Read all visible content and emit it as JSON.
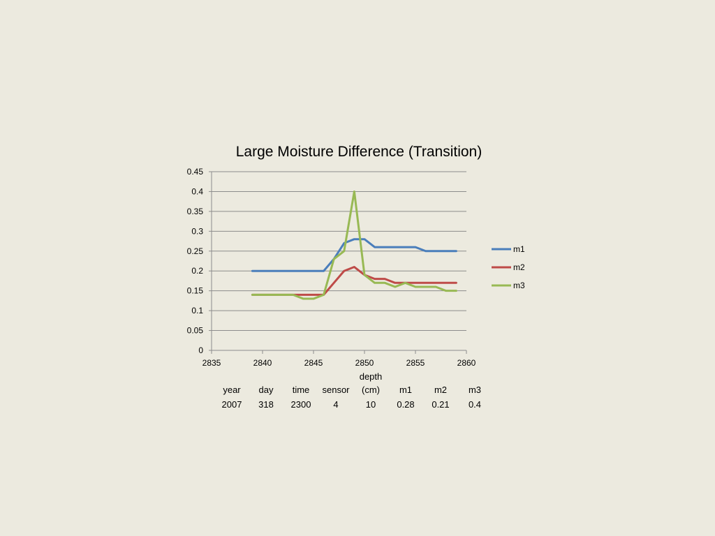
{
  "chart_data": {
    "type": "line",
    "title": "Large Moisture Difference (Transition)",
    "xlim": [
      2835,
      2860
    ],
    "ylim": [
      0,
      0.45
    ],
    "xticks": [
      2835,
      2840,
      2845,
      2850,
      2855,
      2860
    ],
    "yticks": [
      0,
      0.05,
      0.1,
      0.15,
      0.2,
      0.25,
      0.3,
      0.35,
      0.4,
      0.45
    ],
    "xtick_labels": [
      "2835",
      "2840",
      "2845",
      "2850",
      "2855",
      "2860"
    ],
    "ytick_labels": [
      "0",
      "0.05",
      "0.1",
      "0.15",
      "0.2",
      "0.25",
      "0.3",
      "0.35",
      "0.4",
      "0.45"
    ],
    "grid": true,
    "legend_position": "right",
    "x": [
      2839,
      2840,
      2841,
      2842,
      2843,
      2844,
      2845,
      2846,
      2847,
      2848,
      2849,
      2850,
      2851,
      2852,
      2853,
      2854,
      2855,
      2856,
      2857,
      2858,
      2859
    ],
    "series": [
      {
        "name": "m1",
        "color": "#4A7EBB",
        "values": [
          0.2,
          0.2,
          0.2,
          0.2,
          0.2,
          0.2,
          0.2,
          0.2,
          0.23,
          0.27,
          0.28,
          0.28,
          0.26,
          0.26,
          0.26,
          0.26,
          0.26,
          0.25,
          0.25,
          0.25,
          0.25
        ]
      },
      {
        "name": "m2",
        "color": "#BE4B48",
        "values": [
          0.14,
          0.14,
          0.14,
          0.14,
          0.14,
          0.14,
          0.14,
          0.14,
          0.17,
          0.2,
          0.21,
          0.19,
          0.18,
          0.18,
          0.17,
          0.17,
          0.17,
          0.17,
          0.17,
          0.17,
          0.17
        ]
      },
      {
        "name": "m3",
        "color": "#98B954",
        "values": [
          0.14,
          0.14,
          0.14,
          0.14,
          0.14,
          0.13,
          0.13,
          0.14,
          0.23,
          0.25,
          0.4,
          0.19,
          0.17,
          0.17,
          0.16,
          0.17,
          0.16,
          0.16,
          0.16,
          0.15,
          0.15
        ]
      }
    ]
  },
  "info_table": {
    "depth_label_line1": "depth",
    "headers": [
      "year",
      "day",
      "time",
      "sensor",
      "(cm)",
      "m1",
      "m2",
      "m3"
    ],
    "values": [
      "2007",
      "318",
      "2300",
      "4",
      "10",
      "0.28",
      "0.21",
      "0.4"
    ]
  }
}
